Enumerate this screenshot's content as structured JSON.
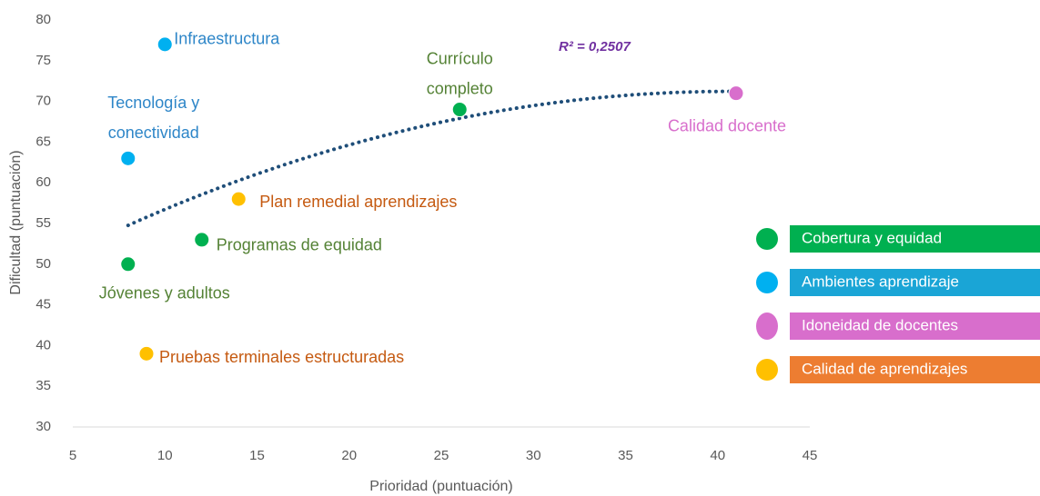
{
  "chart_data": {
    "type": "scatter",
    "x_label": "Prioridad (puntuación)",
    "y_label": "Dificultad (puntuación)",
    "annotation": "R² = 0,2507",
    "xlim": [
      5,
      45
    ],
    "xticks": [
      5,
      10,
      15,
      20,
      25,
      30,
      35,
      40,
      45
    ],
    "ylim": [
      30,
      80
    ],
    "yticks": [
      30,
      35,
      40,
      45,
      50,
      55,
      60,
      65,
      70,
      75,
      80
    ],
    "trendline": {
      "type": "polynomial",
      "order": 2,
      "color": "#1f4e79"
    },
    "series": [
      {
        "name": "Cobertura y equidad",
        "color": "#00b050",
        "legend_color": "#00b050",
        "label_color": "#548235",
        "x": [
          26,
          12,
          8
        ],
        "values": [
          69,
          53,
          50
        ],
        "labels": [
          [
            "Currículo",
            "completo"
          ],
          [
            "Programas de equidad"
          ],
          [
            "Jóvenes y adultos"
          ]
        ]
      },
      {
        "name": "Ambientes aprendizaje",
        "color": "#00b0f0",
        "legend_color": "#1aa5d6",
        "label_color": "#2e86c8",
        "x": [
          10,
          8
        ],
        "values": [
          77,
          63
        ],
        "labels": [
          [
            "Infraestructura"
          ],
          [
            "Tecnología y",
            "conectividad"
          ]
        ]
      },
      {
        "name": "Idoneidad de docentes",
        "color": "#d86ecc",
        "legend_color": "#d86ecc",
        "label_color": "#d86ecc",
        "x": [
          41
        ],
        "values": [
          71
        ],
        "labels": [
          [
            "Calidad docente"
          ]
        ]
      },
      {
        "name": "Calidad de aprendizajes",
        "color": "#ffc000",
        "legend_color": "#ed7d31",
        "label_color": "#c55a11",
        "x": [
          14,
          9
        ],
        "values": [
          58,
          39
        ],
        "labels": [
          [
            "Plan remedial aprendizajes"
          ],
          [
            "Pruebas terminales estructuradas"
          ]
        ]
      }
    ]
  }
}
